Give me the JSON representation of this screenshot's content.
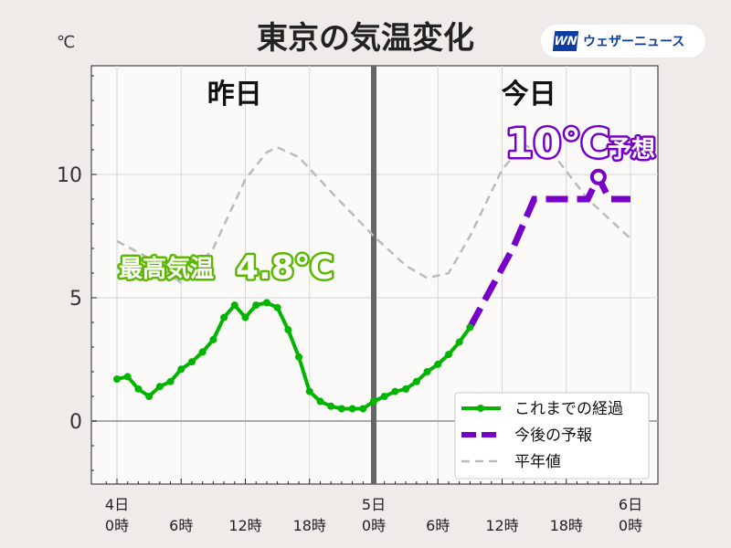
{
  "chart_data": {
    "type": "line",
    "title": "東京の気温変化",
    "ylabel": "℃",
    "ylim": [
      -2.5,
      14.4
    ],
    "xlim": [
      -1,
      50
    ],
    "yticks": [
      0,
      5,
      10
    ],
    "xticks": [
      {
        "hour": 0,
        "label": [
          "4日",
          "0時"
        ]
      },
      {
        "hour": 6,
        "label": [
          "",
          "6時"
        ]
      },
      {
        "hour": 12,
        "label": [
          "",
          "12時"
        ]
      },
      {
        "hour": 18,
        "label": [
          "",
          "18時"
        ]
      },
      {
        "hour": 24,
        "label": [
          "5日",
          "0時"
        ]
      },
      {
        "hour": 30,
        "label": [
          "",
          "6時"
        ]
      },
      {
        "hour": 36,
        "label": [
          "",
          "12時"
        ]
      },
      {
        "hour": 42,
        "label": [
          "",
          "18時"
        ]
      },
      {
        "hour": 48,
        "label": [
          "6日",
          "0時"
        ]
      }
    ],
    "grid": true,
    "day_labels": {
      "yesterday": "昨日",
      "today": "今日"
    },
    "series": [
      {
        "name": "これまでの経過",
        "color": "#00b400",
        "style": "solid-markers",
        "x": [
          0,
          1,
          2,
          3,
          4,
          5,
          6,
          7,
          8,
          9,
          10,
          11,
          12,
          13,
          14,
          15,
          16,
          17,
          18,
          19,
          20,
          21,
          22,
          23,
          24,
          25,
          26,
          27,
          28,
          29,
          30,
          31,
          32,
          33
        ],
        "values": [
          1.7,
          1.8,
          1.3,
          1.0,
          1.4,
          1.6,
          2.1,
          2.4,
          2.8,
          3.3,
          4.2,
          4.7,
          4.2,
          4.7,
          4.8,
          4.6,
          3.7,
          2.6,
          1.2,
          0.8,
          0.6,
          0.5,
          0.5,
          0.5,
          0.8,
          1.0,
          1.2,
          1.3,
          1.6,
          2.0,
          2.3,
          2.7,
          3.2,
          3.8
        ]
      },
      {
        "name": "今後の予報",
        "color": "#7700c8",
        "style": "dashed-thick",
        "x": [
          33,
          37,
          38,
          39,
          42,
          44,
          45,
          46,
          48
        ],
        "values": [
          3.8,
          7.0,
          8.0,
          9.0,
          9.0,
          9.0,
          9.9,
          9.0,
          9.0
        ]
      },
      {
        "name": "平年値",
        "color": "#bbbbbb",
        "style": "dashed-thin",
        "x": [
          0,
          3,
          6,
          9,
          12,
          14,
          15,
          17,
          20,
          24,
          27,
          29,
          31,
          33,
          36,
          38,
          41,
          44,
          48
        ],
        "values": [
          7.3,
          6.6,
          5.6,
          7.0,
          9.8,
          10.9,
          11.1,
          10.7,
          9.3,
          7.5,
          6.3,
          5.8,
          6.0,
          7.5,
          10.2,
          11.2,
          10.7,
          9.0,
          7.4
        ]
      }
    ],
    "legend_placement": "bottom-right",
    "annotations": {
      "max_label": "最高気温",
      "max_value": "4.8℃",
      "max_color": "#5ab800",
      "forecast_value": "10℃",
      "forecast_suffix": "予想",
      "forecast_color": "#7700c8"
    }
  },
  "logo": {
    "mark": "WN",
    "text": "ウェザーニュース"
  }
}
